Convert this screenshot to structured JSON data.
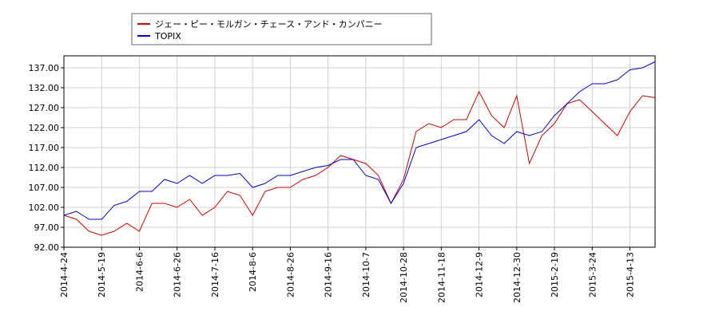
{
  "chart_data": {
    "type": "line",
    "categories": [
      "2014-4-24",
      null,
      null,
      "2014-5-19",
      null,
      null,
      "2014-6-6",
      null,
      null,
      "2014-6-26",
      null,
      null,
      "2014-7-16",
      null,
      null,
      "2014-8-6",
      null,
      null,
      "2014-8-26",
      null,
      null,
      "2014-9-16",
      null,
      null,
      "2014-10-7",
      null,
      null,
      "2014-10-28",
      null,
      null,
      "2014-11-18",
      null,
      null,
      "2014-12-9",
      null,
      null,
      "2014-12-30",
      null,
      null,
      "2015-2-19",
      null,
      null,
      "2015-3-24",
      null,
      null,
      "2015-4-13",
      null,
      null
    ],
    "series": [
      {
        "name": "ジェー・ピー・モルガン・チェース・アンド・カンパニー",
        "color": "#cc0000",
        "values": [
          100,
          99,
          96,
          95,
          96,
          98,
          96,
          103,
          103,
          102,
          104,
          100,
          102,
          106,
          105,
          100,
          106,
          107,
          107,
          109,
          110,
          112,
          115,
          114,
          113,
          110,
          103,
          109,
          121,
          123,
          122,
          124,
          124,
          131,
          125,
          122,
          130,
          113,
          120,
          123,
          128,
          129,
          126,
          123,
          120,
          126,
          130,
          129.5
        ]
      },
      {
        "name": "TOPIX",
        "color": "#0000cc",
        "values": [
          100,
          101,
          99,
          99,
          102.5,
          103.5,
          106,
          106,
          109,
          108,
          110,
          108,
          110,
          110,
          110.5,
          107,
          108,
          110,
          110,
          111,
          112,
          112.5,
          114,
          114,
          110,
          109,
          103,
          108,
          117,
          118,
          119,
          120,
          121,
          124,
          120,
          118,
          121,
          120,
          121,
          125,
          128,
          131,
          133,
          133,
          134,
          136.5,
          137,
          138.5
        ]
      }
    ],
    "ylim": [
      92,
      140
    ],
    "yticks": [
      {
        "value": 92,
        "label": "92.00"
      },
      {
        "value": 97,
        "label": "97.00"
      },
      {
        "value": 102,
        "label": "102.00"
      },
      {
        "value": 107,
        "label": "107.00"
      },
      {
        "value": 112,
        "label": "112.00"
      },
      {
        "value": 117,
        "label": "117.00"
      },
      {
        "value": 122,
        "label": "122.00"
      },
      {
        "value": 127,
        "label": "127.00"
      },
      {
        "value": 132,
        "label": "132.00"
      },
      {
        "value": 137,
        "label": "137.00"
      }
    ],
    "grid": true
  }
}
